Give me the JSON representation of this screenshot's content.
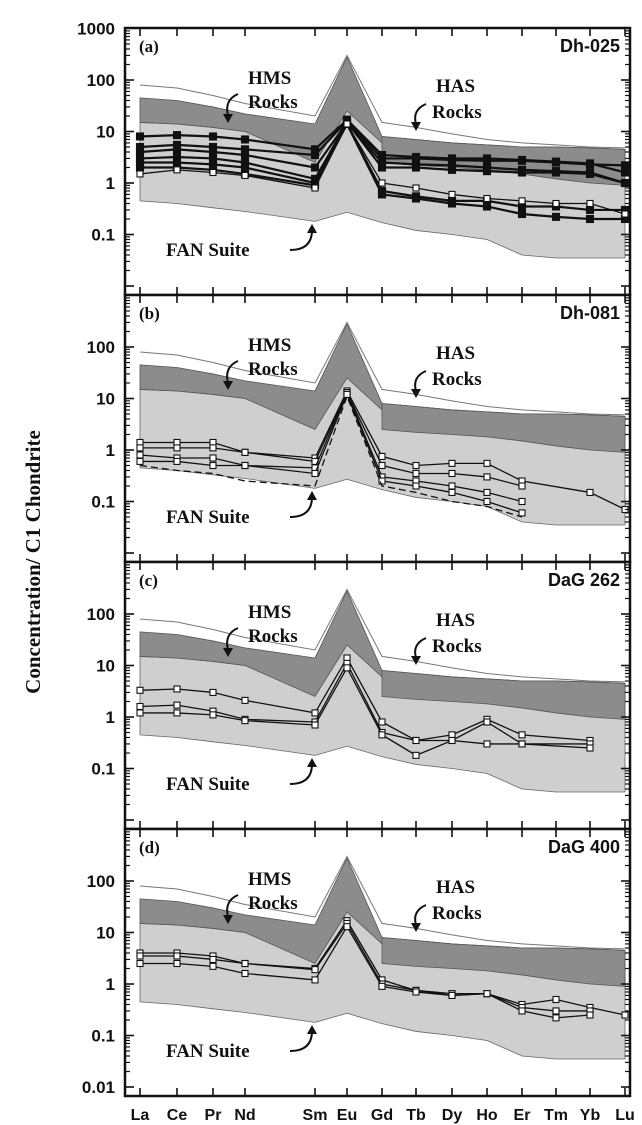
{
  "figure": {
    "y_axis_title": "Concentration/ C1 Chondrite"
  },
  "chart_data": [
    {
      "type": "line",
      "panel_label": "(a)",
      "sample_name": "Dh-025",
      "x": [
        "La",
        "Ce",
        "Pr",
        "Nd",
        "Sm",
        "Eu",
        "Gd",
        "Tb",
        "Dy",
        "Ho",
        "Er",
        "Tm",
        "Yb",
        "Lu"
      ],
      "x_tick_labels": [
        "La",
        "Ce",
        "Pr",
        "Nd",
        "Sm",
        "Eu",
        "Gd",
        "Tb",
        "Dy",
        "Ho",
        "Er",
        "Tm",
        "Yb",
        "Lu"
      ],
      "y_scale": "log",
      "ylim": [
        0.01,
        1000
      ],
      "y_tick_labels": [
        "1000",
        "100",
        "10",
        "1",
        "0.1"
      ],
      "annotations": [
        "HMS Rocks",
        "HAS Rocks",
        "FAN Suite"
      ],
      "fields": {
        "fan_suite": {
          "upper": [
            15,
            14,
            12,
            10,
            7,
            28,
            6,
            5,
            4.5,
            4,
            3.5,
            3,
            2.5,
            2.2
          ],
          "lower": [
            0.45,
            0.4,
            0.33,
            0.28,
            0.18,
            0.27,
            0.17,
            0.12,
            0.1,
            0.08,
            0.04,
            0.035,
            0.035,
            0.035
          ]
        },
        "hms_rocks": {
          "upper": [
            45,
            40,
            30,
            22,
            14,
            280,
            8,
            7,
            6,
            5.5,
            5,
            5,
            4.8,
            4.5
          ],
          "lower": [
            15,
            14,
            12,
            10,
            2.5,
            25,
            6,
            5,
            4.5,
            4,
            3.5,
            3,
            2.5,
            2.2
          ]
        },
        "has_rocks": {
          "upper": [
            null,
            null,
            null,
            null,
            null,
            null,
            8,
            7,
            6,
            5.5,
            5,
            5,
            4.8,
            4.5
          ],
          "lower": [
            null,
            null,
            null,
            null,
            null,
            null,
            2.5,
            2.2,
            2,
            1.8,
            1.5,
            1.2,
            1,
            0.9
          ]
        },
        "outer_envelope": [
          80,
          70,
          50,
          35,
          20,
          300,
          15,
          12,
          9,
          7,
          6,
          5.5,
          5,
          4.8
        ]
      },
      "series": [
        {
          "marker": "filled-square",
          "values": [
            8,
            8.5,
            8,
            7,
            4.5,
            17,
            3.5,
            3.2,
            3,
            3,
            2.8,
            2.6,
            2.4,
            1.6
          ]
        },
        {
          "marker": "filled-square",
          "values": [
            5,
            5.5,
            5,
            4.5,
            3.5,
            16,
            3,
            3,
            2.8,
            2.7,
            2.7,
            2.5,
            2.3,
            2.2
          ]
        },
        {
          "marker": "filled-square",
          "values": [
            4,
            4.5,
            4,
            3.5,
            2,
            15,
            2.5,
            2.3,
            2.2,
            2,
            1.8,
            1.7,
            1.6,
            1
          ]
        },
        {
          "marker": "filled-square",
          "values": [
            3,
            3.2,
            3,
            2.5,
            1.2,
            15,
            2,
            2,
            1.8,
            1.7,
            1.6,
            1.6,
            1.5,
            1
          ]
        },
        {
          "marker": "filled-square",
          "values": [
            2.5,
            2.5,
            2.3,
            2,
            1,
            14,
            0.7,
            0.55,
            0.45,
            0.45,
            0.35,
            0.35,
            0.3,
            0.3
          ]
        },
        {
          "marker": "filled-square",
          "values": [
            2,
            2,
            1.8,
            1.5,
            0.9,
            14,
            0.6,
            0.5,
            0.4,
            0.35,
            0.25,
            0.22,
            0.2,
            0.2
          ]
        },
        {
          "marker": "open-square",
          "values": [
            1.5,
            1.8,
            1.6,
            1.4,
            0.8,
            14,
            1,
            0.8,
            0.6,
            0.5,
            0.45,
            0.4,
            0.4,
            0.25
          ]
        }
      ]
    },
    {
      "type": "line",
      "panel_label": "(b)",
      "sample_name": "Dh-081",
      "x": [
        "La",
        "Ce",
        "Pr",
        "Nd",
        "Sm",
        "Eu",
        "Gd",
        "Tb",
        "Dy",
        "Ho",
        "Er",
        "Tm",
        "Yb",
        "Lu"
      ],
      "x_tick_labels": [
        "La",
        "Ce",
        "Pr",
        "Nd",
        "Sm",
        "Eu",
        "Gd",
        "Tb",
        "Dy",
        "Ho",
        "Er",
        "Tm",
        "Yb",
        "Lu"
      ],
      "y_scale": "log",
      "ylim": [
        0.01,
        1000
      ],
      "y_tick_labels": [
        "100",
        "10",
        "1",
        "0.1"
      ],
      "annotations": [
        "HMS Rocks",
        "HAS Rocks",
        "FAN Suite"
      ],
      "fields": {
        "fan_suite": {
          "upper": [
            15,
            14,
            12,
            10,
            7,
            28,
            6,
            5,
            4.5,
            4,
            3.5,
            3,
            2.5,
            2.2
          ],
          "lower": [
            0.45,
            0.4,
            0.33,
            0.28,
            0.18,
            0.27,
            0.17,
            0.12,
            0.1,
            0.08,
            0.04,
            0.035,
            0.035,
            0.035
          ]
        },
        "hms_rocks": {
          "upper": [
            45,
            40,
            30,
            22,
            14,
            280,
            8,
            7,
            6,
            5.5,
            5,
            5,
            4.8,
            4.5
          ],
          "lower": [
            15,
            14,
            12,
            10,
            2.5,
            25,
            6,
            5,
            4.5,
            4,
            3.5,
            3,
            2.5,
            2.2
          ]
        },
        "has_rocks": {
          "upper": [
            null,
            null,
            null,
            null,
            null,
            null,
            8,
            7,
            6,
            5.5,
            5,
            5,
            4.8,
            4.5
          ],
          "lower": [
            null,
            null,
            null,
            null,
            null,
            null,
            2.5,
            2.2,
            2,
            1.8,
            1.5,
            1.2,
            1,
            0.9
          ]
        },
        "outer_envelope": [
          80,
          70,
          50,
          35,
          20,
          300,
          15,
          12,
          9,
          7,
          6,
          5.5,
          5,
          4.8
        ]
      },
      "series": [
        {
          "marker": "open-square",
          "values": [
            1.4,
            1.4,
            1.4,
            0.9,
            0.7,
            14,
            0.75,
            0.5,
            0.55,
            0.55,
            0.25,
            null,
            0.15,
            0.07
          ]
        },
        {
          "marker": "open-square",
          "values": [
            1.1,
            1.1,
            1.1,
            0.9,
            0.6,
            13,
            0.5,
            0.35,
            0.35,
            0.3,
            0.2,
            null,
            null,
            null
          ]
        },
        {
          "marker": "open-square",
          "values": [
            0.8,
            0.7,
            0.7,
            0.5,
            0.45,
            13,
            0.3,
            0.25,
            0.2,
            0.15,
            0.1,
            null,
            null,
            null
          ]
        },
        {
          "marker": "open-square",
          "values": [
            0.6,
            0.6,
            0.5,
            0.5,
            0.35,
            12,
            0.25,
            0.2,
            0.15,
            0.1,
            0.06,
            null,
            null,
            null
          ]
        },
        {
          "marker": "none-dashed",
          "values": [
            0.5,
            0.4,
            0.35,
            0.25,
            0.2,
            11,
            0.2,
            0.15,
            0.1,
            0.08,
            0.05,
            null,
            null,
            null
          ]
        }
      ]
    },
    {
      "type": "line",
      "panel_label": "(c)",
      "sample_name": "DaG 262",
      "x": [
        "La",
        "Ce",
        "Pr",
        "Nd",
        "Sm",
        "Eu",
        "Gd",
        "Tb",
        "Dy",
        "Ho",
        "Er",
        "Tm",
        "Yb",
        "Lu"
      ],
      "x_tick_labels": [
        "La",
        "Ce",
        "Pr",
        "Nd",
        "Sm",
        "Eu",
        "Gd",
        "Tb",
        "Dy",
        "Ho",
        "Er",
        "Tm",
        "Yb",
        "Lu"
      ],
      "y_scale": "log",
      "ylim": [
        0.01,
        1000
      ],
      "y_tick_labels": [
        "100",
        "10",
        "1",
        "0.1"
      ],
      "annotations": [
        "HMS Rocks",
        "HAS Rocks",
        "FAN Suite"
      ],
      "fields": {
        "fan_suite": {
          "upper": [
            15,
            14,
            12,
            10,
            7,
            28,
            6,
            5,
            4.5,
            4,
            3.5,
            3,
            2.5,
            2.2
          ],
          "lower": [
            0.45,
            0.4,
            0.33,
            0.28,
            0.18,
            0.27,
            0.17,
            0.12,
            0.1,
            0.08,
            0.04,
            0.035,
            0.035,
            0.035
          ]
        },
        "hms_rocks": {
          "upper": [
            45,
            40,
            30,
            22,
            14,
            280,
            8,
            7,
            6,
            5.5,
            5,
            5,
            4.8,
            4.5
          ],
          "lower": [
            15,
            14,
            12,
            10,
            2.5,
            25,
            6,
            5,
            4.5,
            4,
            3.5,
            3,
            2.5,
            2.2
          ]
        },
        "has_rocks": {
          "upper": [
            null,
            null,
            null,
            null,
            null,
            null,
            8,
            7,
            6,
            5.5,
            5,
            5,
            4.8,
            4.5
          ],
          "lower": [
            null,
            null,
            null,
            null,
            null,
            null,
            2.5,
            2.2,
            2,
            1.8,
            1.5,
            1.2,
            1,
            0.9
          ]
        },
        "outer_envelope": [
          80,
          70,
          50,
          35,
          20,
          300,
          15,
          12,
          9,
          7,
          6,
          5.5,
          5,
          4.8
        ]
      },
      "series": [
        {
          "marker": "open-square",
          "values": [
            3.3,
            3.5,
            3,
            2.1,
            1.2,
            14,
            0.8,
            0.35,
            0.45,
            0.9,
            0.45,
            null,
            0.35,
            null
          ]
        },
        {
          "marker": "open-square",
          "values": [
            1.6,
            1.7,
            1.3,
            0.9,
            0.8,
            11,
            0.5,
            0.35,
            0.35,
            0.8,
            0.3,
            null,
            0.3,
            null
          ]
        },
        {
          "marker": "open-square",
          "values": [
            1.2,
            1.2,
            1.1,
            0.85,
            0.7,
            9,
            0.45,
            0.18,
            0.35,
            0.3,
            0.3,
            null,
            0.25,
            null
          ]
        }
      ]
    },
    {
      "type": "line",
      "panel_label": "(d)",
      "sample_name": "DaG 400",
      "x": [
        "La",
        "Ce",
        "Pr",
        "Nd",
        "Sm",
        "Eu",
        "Gd",
        "Tb",
        "Dy",
        "Ho",
        "Er",
        "Tm",
        "Yb",
        "Lu"
      ],
      "x_tick_labels": [
        "La",
        "Ce",
        "Pr",
        "Nd",
        "Sm",
        "Eu",
        "Gd",
        "Tb",
        "Dy",
        "Ho",
        "Er",
        "Tm",
        "Yb",
        "Lu"
      ],
      "y_scale": "log",
      "ylim": [
        0.01,
        1000
      ],
      "y_tick_labels": [
        "100",
        "10",
        "1",
        "0.1",
        "0.01"
      ],
      "annotations": [
        "HMS Rocks",
        "HAS Rocks",
        "FAN Suite"
      ],
      "fields": {
        "fan_suite": {
          "upper": [
            15,
            14,
            12,
            10,
            7,
            28,
            6,
            5,
            4.5,
            4,
            3.5,
            3,
            2.5,
            2.2
          ],
          "lower": [
            0.45,
            0.4,
            0.33,
            0.28,
            0.18,
            0.27,
            0.17,
            0.12,
            0.1,
            0.08,
            0.04,
            0.035,
            0.035,
            0.035
          ]
        },
        "hms_rocks": {
          "upper": [
            45,
            40,
            30,
            22,
            14,
            280,
            8,
            7,
            6,
            5.5,
            5,
            5,
            4.8,
            4.5
          ],
          "lower": [
            15,
            14,
            12,
            10,
            2.5,
            25,
            6,
            5,
            4.5,
            4,
            3.5,
            3,
            2.5,
            2.2
          ]
        },
        "has_rocks": {
          "upper": [
            null,
            null,
            null,
            null,
            null,
            null,
            8,
            7,
            6,
            5.5,
            5,
            5,
            4.8,
            4.5
          ],
          "lower": [
            null,
            null,
            null,
            null,
            null,
            null,
            2.5,
            2.2,
            2,
            1.8,
            1.5,
            1.2,
            1,
            0.9
          ]
        },
        "outer_envelope": [
          80,
          70,
          50,
          35,
          20,
          300,
          15,
          12,
          9,
          7,
          6,
          5.5,
          5,
          4.8
        ]
      },
      "series": [
        {
          "marker": "open-square",
          "values": [
            4,
            4,
            3.5,
            2.5,
            2,
            17,
            1.2,
            0.75,
            0.65,
            0.65,
            0.4,
            0.5,
            0.35,
            0.25
          ]
        },
        {
          "marker": "open-square",
          "values": [
            3.5,
            3.5,
            3,
            2.5,
            1.9,
            15,
            1,
            0.75,
            0.6,
            0.65,
            0.35,
            0.3,
            0.3,
            null
          ]
        },
        {
          "marker": "open-square",
          "values": [
            2.5,
            2.5,
            2.2,
            1.6,
            1.2,
            13,
            0.9,
            0.7,
            0.6,
            0.65,
            0.3,
            0.22,
            0.25,
            null
          ]
        }
      ]
    }
  ]
}
